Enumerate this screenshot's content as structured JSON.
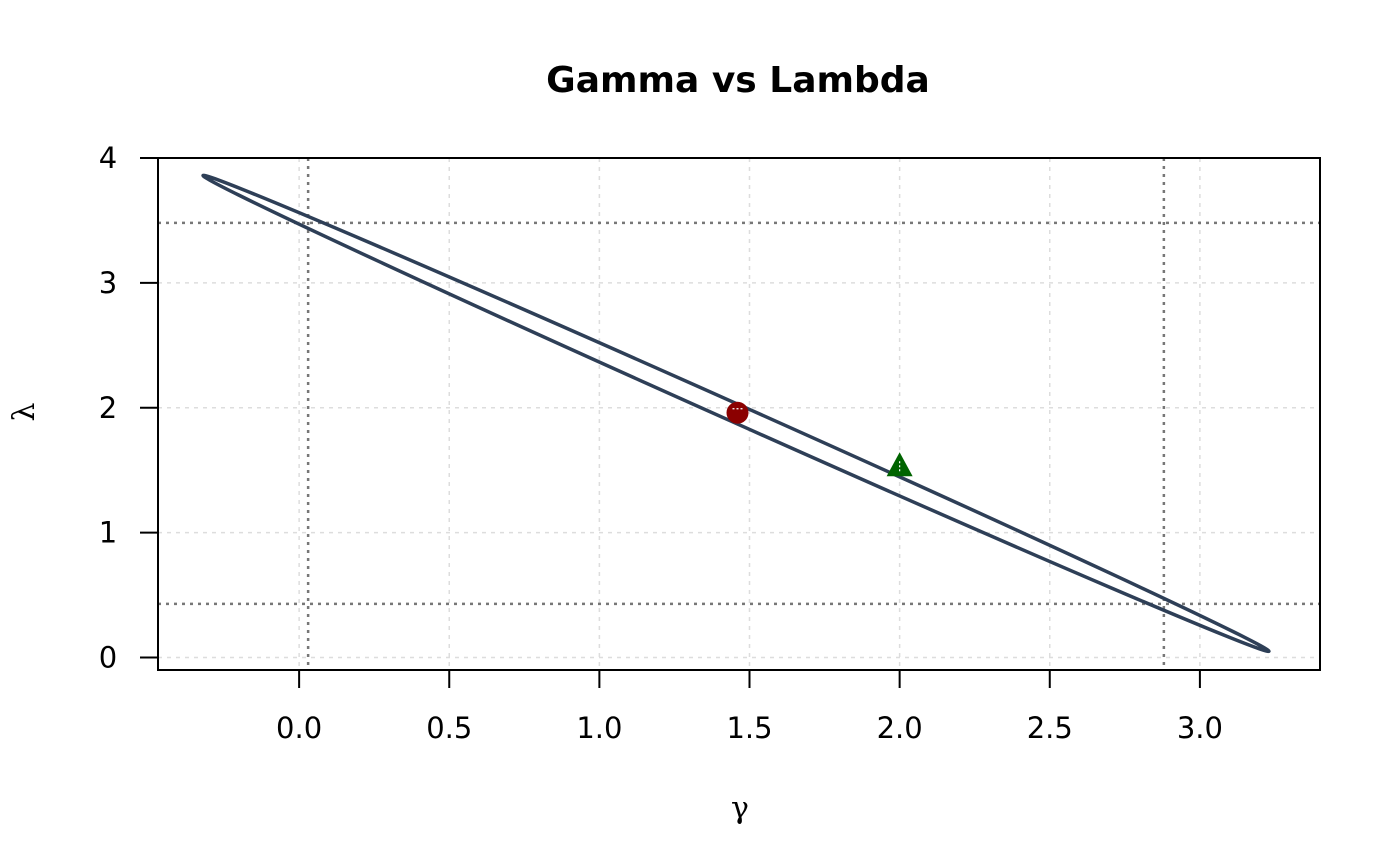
{
  "chart_data": {
    "type": "scatter",
    "title": "Gamma vs Lambda",
    "xlabel": "γ",
    "ylabel": "λ",
    "xlim": [
      -0.47,
      3.4
    ],
    "ylim": [
      -0.1,
      4.0
    ],
    "x_ticks": [
      0.0,
      0.5,
      1.0,
      1.5,
      2.0,
      2.5,
      3.0
    ],
    "x_tick_labels": [
      "0.0",
      "0.5",
      "1.0",
      "1.5",
      "2.0",
      "2.5",
      "3.0"
    ],
    "y_ticks": [
      0,
      1,
      2,
      3,
      4
    ],
    "y_tick_labels": [
      "0",
      "1",
      "2",
      "3",
      "4"
    ],
    "grid": true,
    "ellipse": {
      "center": [
        1.46,
        1.96
      ],
      "endpoint_upper_left": [
        -0.32,
        3.86
      ],
      "endpoint_lower_right": [
        3.23,
        0.05
      ],
      "upper_arc_at_x0": 3.58,
      "lower_arc_at_x0": 3.42,
      "color": "#2e3f57"
    },
    "reference_lines": {
      "vertical": [
        0.03,
        2.88
      ],
      "horizontal": [
        0.43,
        3.48
      ],
      "color": "#777777"
    },
    "points": [
      {
        "marker": "circle",
        "x": 1.46,
        "y": 1.96,
        "color": "#8b0000"
      },
      {
        "marker": "triangle",
        "x": 2.0,
        "y": 1.54,
        "color": "#006400"
      }
    ]
  }
}
